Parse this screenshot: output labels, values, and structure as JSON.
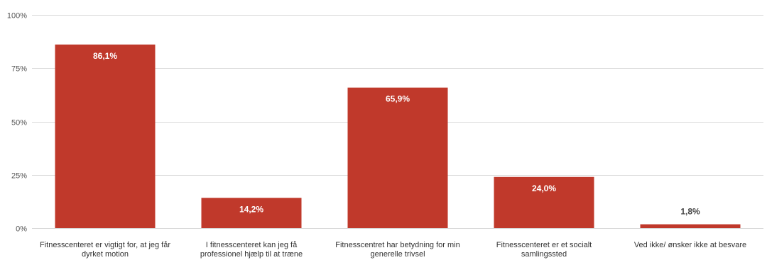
{
  "chart_data": {
    "type": "bar",
    "categories": [
      [
        "Fitnesscenteret er vigtigt for, at jeg får",
        "dyrket motion"
      ],
      [
        "I fitnesscenteret kan jeg få",
        "professionel hjælp til at træne"
      ],
      [
        "Fitnesscentret har betydning for min",
        "generelle trivsel"
      ],
      [
        "Fitnesscenteret er et socialt",
        "samlingssted"
      ],
      [
        "Ved ikke/ ønsker ikke at besvare"
      ]
    ],
    "values": [
      86.1,
      14.2,
      65.9,
      24.0,
      1.8
    ],
    "data_labels": [
      "86,1%",
      "14,2%",
      "65,9%",
      "24,0%",
      "1,8%"
    ],
    "ylim": [
      0,
      100
    ],
    "yticks": [
      0,
      25,
      50,
      75,
      100
    ],
    "ytick_labels": [
      "0%",
      "25%",
      "50%",
      "75%",
      "100%"
    ],
    "grid": true,
    "bar_color": "#c0392b",
    "label_inside_color": "#ffffff",
    "label_outside_color": "#444444",
    "grid_color": "#d9d9d9"
  }
}
